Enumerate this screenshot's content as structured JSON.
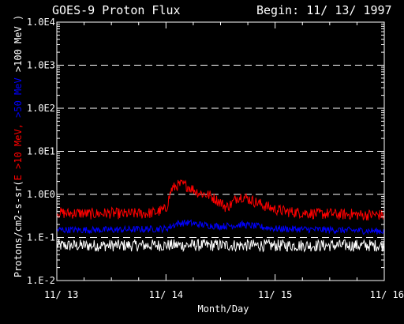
{
  "chart_data": {
    "type": "line",
    "title": "GOES-9 Proton Flux",
    "subtitle": "Begin: 11/ 13/ 1997",
    "xlabel": "Month/Day",
    "ylabel_parts": [
      {
        "text": "Protons/cm2-s-sr(",
        "color": "#ffffff"
      },
      {
        "text": "E >10 MeV, ",
        "color": "#ff0000"
      },
      {
        "text": ">50 MeV ",
        "color": "#0000ff"
      },
      {
        "text": ">100 MeV )",
        "color": "#ffffff"
      }
    ],
    "y_scale": "log",
    "ylim": [
      0.01,
      10000
    ],
    "y_ticks": [
      {
        "value": 10000,
        "label": "1.0E4"
      },
      {
        "value": 1000,
        "label": "1.0E3"
      },
      {
        "value": 100,
        "label": "1.0E2"
      },
      {
        "value": 10,
        "label": "1.0E1"
      },
      {
        "value": 1,
        "label": "1.0E0"
      },
      {
        "value": 0.1,
        "label": "1.E-1"
      },
      {
        "value": 0.01,
        "label": "1.E-2"
      }
    ],
    "grid": "dashed horizontal at decades",
    "x_ticks": [
      "11/ 13",
      "11/ 14",
      "11/ 15",
      "11/ 16"
    ],
    "colors": {
      "background": "#000000",
      "axes": "#ffffff",
      "gt10": "#ff0000",
      "gt50": "#0000ff",
      "gt100": "#ffffff"
    },
    "series": [
      {
        "key": "gt10",
        "color": "#ff0000",
        "x": [
          0.0,
          0.1,
          0.2,
          0.3,
          0.4,
          0.5,
          0.6,
          0.7,
          0.8,
          0.9,
          1.0,
          1.05,
          1.1,
          1.15,
          1.2,
          1.25,
          1.3,
          1.4,
          1.5,
          1.55,
          1.6,
          1.65,
          1.7,
          1.75,
          1.8,
          1.9,
          2.0,
          2.1,
          2.2,
          2.3,
          2.4,
          2.5,
          2.6,
          2.7,
          2.8,
          2.9,
          3.0
        ],
        "values": [
          0.38,
          0.36,
          0.37,
          0.35,
          0.36,
          0.37,
          0.35,
          0.36,
          0.36,
          0.38,
          0.45,
          1.3,
          1.6,
          1.7,
          1.55,
          1.3,
          1.1,
          0.95,
          0.65,
          0.5,
          0.6,
          0.85,
          0.9,
          0.8,
          0.7,
          0.55,
          0.45,
          0.4,
          0.38,
          0.37,
          0.35,
          0.36,
          0.34,
          0.35,
          0.33,
          0.34,
          0.33
        ],
        "noise_decades": 0.13
      },
      {
        "key": "gt50",
        "color": "#0000ff",
        "x": [
          0.0,
          0.5,
          1.0,
          1.1,
          1.2,
          1.3,
          1.5,
          1.7,
          2.0,
          2.5,
          3.0
        ],
        "values": [
          0.15,
          0.15,
          0.16,
          0.21,
          0.22,
          0.2,
          0.18,
          0.2,
          0.16,
          0.15,
          0.14
        ],
        "noise_decades": 0.08
      },
      {
        "key": "gt100",
        "color": "#ffffff",
        "x": [
          0.0,
          0.5,
          1.0,
          1.5,
          2.0,
          2.5,
          3.0
        ],
        "values": [
          0.065,
          0.065,
          0.066,
          0.066,
          0.065,
          0.065,
          0.065
        ],
        "noise_decades": 0.14
      }
    ]
  }
}
